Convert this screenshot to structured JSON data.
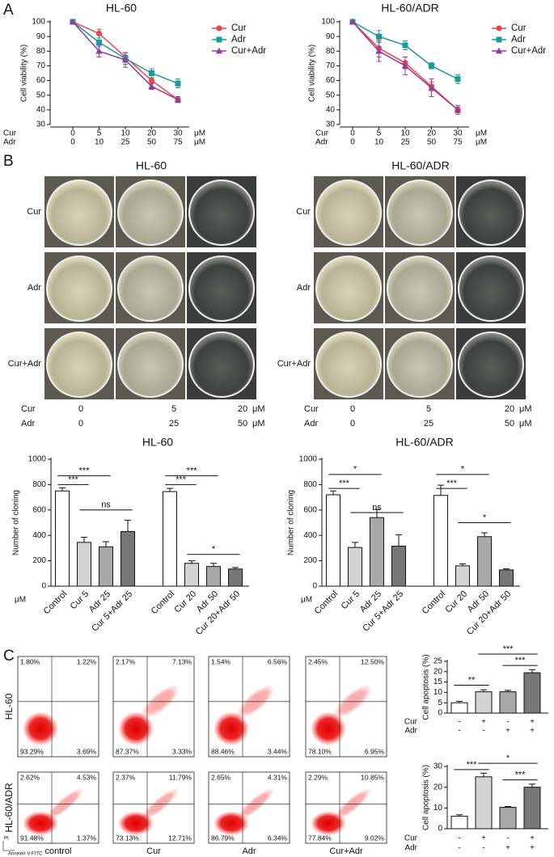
{
  "panel_labels": [
    "A",
    "B",
    "C"
  ],
  "chart_data": [
    {
      "type": "line",
      "title": "HL-60",
      "y_label": "Cell viability (%)",
      "categories": [
        "0",
        "5",
        "10",
        "20",
        "30"
      ],
      "categories2": [
        "0",
        "10",
        "25",
        "50",
        "75"
      ],
      "x_row_labels": [
        "Cur",
        "Adr"
      ],
      "x_unit": "μM",
      "ylim": [
        30,
        100
      ],
      "yticks": [
        30,
        40,
        50,
        60,
        70,
        80,
        90,
        100
      ],
      "legend": "top-right",
      "series": [
        {
          "name": "Cur",
          "color": "#e8474b",
          "marker": "circle",
          "values": [
            100,
            92,
            76,
            60,
            47
          ],
          "errors": [
            0,
            3,
            3,
            2,
            2
          ]
        },
        {
          "name": "Adr",
          "color": "#1a9a9a",
          "marker": "square",
          "values": [
            100,
            86,
            75,
            65,
            58
          ],
          "errors": [
            0,
            3,
            4,
            3,
            3
          ]
        },
        {
          "name": "Cur+Adr",
          "color": "#8e3ea0",
          "marker": "triangle",
          "values": [
            100,
            80,
            74,
            56,
            47
          ],
          "errors": [
            0,
            4,
            5,
            2,
            2
          ]
        }
      ]
    },
    {
      "type": "line",
      "title": "HL-60/ADR",
      "y_label": "Cell viability (%)",
      "categories": [
        "0",
        "5",
        "10",
        "20",
        "30"
      ],
      "categories2": [
        "0",
        "10",
        "25",
        "50",
        "75"
      ],
      "x_row_labels": [
        "Cur",
        "Adr"
      ],
      "x_unit": "μM",
      "ylim": [
        30,
        100
      ],
      "yticks": [
        30,
        40,
        50,
        60,
        70,
        80,
        90,
        100
      ],
      "legend": "top-right",
      "series": [
        {
          "name": "Cur",
          "color": "#e8474b",
          "marker": "circle",
          "values": [
            100,
            82,
            72,
            56,
            40
          ],
          "errors": [
            0,
            6,
            4,
            3,
            2
          ]
        },
        {
          "name": "Adr",
          "color": "#1a9a9a",
          "marker": "square",
          "values": [
            100,
            90,
            84,
            70,
            61
          ],
          "errors": [
            0,
            4,
            3,
            2,
            3
          ]
        },
        {
          "name": "Cur+Adr",
          "color": "#8e3ea0",
          "marker": "triangle",
          "values": [
            100,
            80,
            70,
            55,
            40
          ],
          "errors": [
            0,
            7,
            6,
            6,
            3
          ]
        }
      ]
    },
    {
      "type": "bar",
      "title": "HL-60",
      "y_label": "Number of cloning",
      "x_unit": "μM",
      "categories": [
        "Control",
        "Cur 5",
        "Adr 25",
        "Cur 5+Adr 25",
        "Control",
        "Cur 20",
        "Adr 50",
        "Cur 20+Adr 50"
      ],
      "colors": [
        "#ffffff",
        "#d4d4d4",
        "#a9a9a9",
        "#777777",
        "#ffffff",
        "#d4d4d4",
        "#a9a9a9",
        "#777777"
      ],
      "values": [
        750,
        345,
        310,
        430,
        745,
        180,
        155,
        135
      ],
      "errors": [
        25,
        40,
        40,
        90,
        25,
        20,
        25,
        12
      ],
      "ylim": [
        0,
        1000
      ],
      "yticks": [
        0,
        200,
        400,
        600,
        800,
        1000
      ],
      "annotations": [
        "***",
        "***",
        "ns",
        "***",
        "***",
        "*"
      ]
    },
    {
      "type": "bar",
      "title": "HL-60/ADR",
      "y_label": "Number of cloning",
      "x_unit": "μM",
      "categories": [
        "Control",
        "Cur 5",
        "Adr 25",
        "Cur 5+Adr 25",
        "Control",
        "Cur 20",
        "Adr 50",
        "Cur 20+Adr 50"
      ],
      "colors": [
        "#ffffff",
        "#d4d4d4",
        "#a9a9a9",
        "#777777",
        "#ffffff",
        "#d4d4d4",
        "#a9a9a9",
        "#777777"
      ],
      "values": [
        720,
        305,
        540,
        315,
        715,
        160,
        390,
        128
      ],
      "errors": [
        30,
        40,
        65,
        90,
        80,
        15,
        30,
        8
      ],
      "ylim": [
        0,
        1000
      ],
      "yticks": [
        0,
        200,
        400,
        600,
        800,
        1000
      ],
      "annotations": [
        "***",
        "*",
        "ns",
        "*",
        "***",
        "*"
      ]
    },
    {
      "type": "bar",
      "y_label": "Cell apoptosis (%)",
      "x_table": {
        "rows": [
          "Cur",
          "Adr"
        ],
        "cells": [
          [
            "-",
            "+",
            "-",
            "+"
          ],
          [
            "-",
            "-",
            "+",
            "+"
          ]
        ]
      },
      "colors": [
        "#ffffff",
        "#d4d4d4",
        "#a9a9a9",
        "#777777"
      ],
      "values": [
        5,
        10.3,
        10.3,
        19.5
      ],
      "errors": [
        0.7,
        1,
        0.7,
        1.5
      ],
      "ylim": [
        0,
        25
      ],
      "yticks": [
        0,
        5,
        10,
        15,
        20,
        25
      ],
      "annotations": [
        "**",
        "***",
        "***"
      ]
    },
    {
      "type": "bar",
      "y_label": "Cell apoptosis (%)",
      "x_table": {
        "rows": [
          "Cur",
          "Adr"
        ],
        "cells": [
          [
            "-",
            "+",
            "-",
            "+"
          ],
          [
            "-",
            "-",
            "+",
            "+"
          ]
        ]
      },
      "colors": [
        "#ffffff",
        "#d4d4d4",
        "#a9a9a9",
        "#777777"
      ],
      "values": [
        6,
        25,
        10.3,
        20
      ],
      "errors": [
        0.7,
        1.8,
        0.4,
        1.5
      ],
      "ylim": [
        0,
        30
      ],
      "yticks": [
        0,
        10,
        20,
        30
      ],
      "annotations": [
        "***",
        "*",
        "***"
      ]
    }
  ],
  "photos": {
    "titles": [
      "HL-60",
      "HL-60/ADR"
    ],
    "row_labels": [
      "Cur",
      "Adr",
      "Cur+Adr"
    ],
    "dose_rows": [
      {
        "name": "Cur",
        "values": [
          "0",
          "5",
          "20"
        ]
      },
      {
        "name": "Adr",
        "values": [
          "0",
          "25",
          "50"
        ]
      }
    ],
    "unit": "μM"
  },
  "flow": {
    "row_labels": [
      "HL-60",
      "HL-60/ADR"
    ],
    "column_labels": [
      "control",
      "Cur",
      "Adr",
      "Cur+Adr"
    ],
    "y_axis": "PI",
    "x_axis": "Annexin V-FITC",
    "quadrants": [
      [
        [
          "1.80%",
          "1.22%",
          "93.29%",
          "3.69%"
        ],
        [
          "2.17%",
          "7.13%",
          "87.37%",
          "3.33%"
        ],
        [
          "1.54%",
          "6.56%",
          "88.46%",
          "3.44%"
        ],
        [
          "2.45%",
          "12.50%",
          "78.10%",
          "6.95%"
        ]
      ],
      [
        [
          "2.62%",
          "4.53%",
          "91.48%",
          "1.37%"
        ],
        [
          "2.37%",
          "11.79%",
          "73.13%",
          "12.71%"
        ],
        [
          "2.65%",
          "4.31%",
          "86.79%",
          "6.34%"
        ],
        [
          "2.29%",
          "10.85%",
          "77.84%",
          "9.02%"
        ]
      ]
    ]
  }
}
